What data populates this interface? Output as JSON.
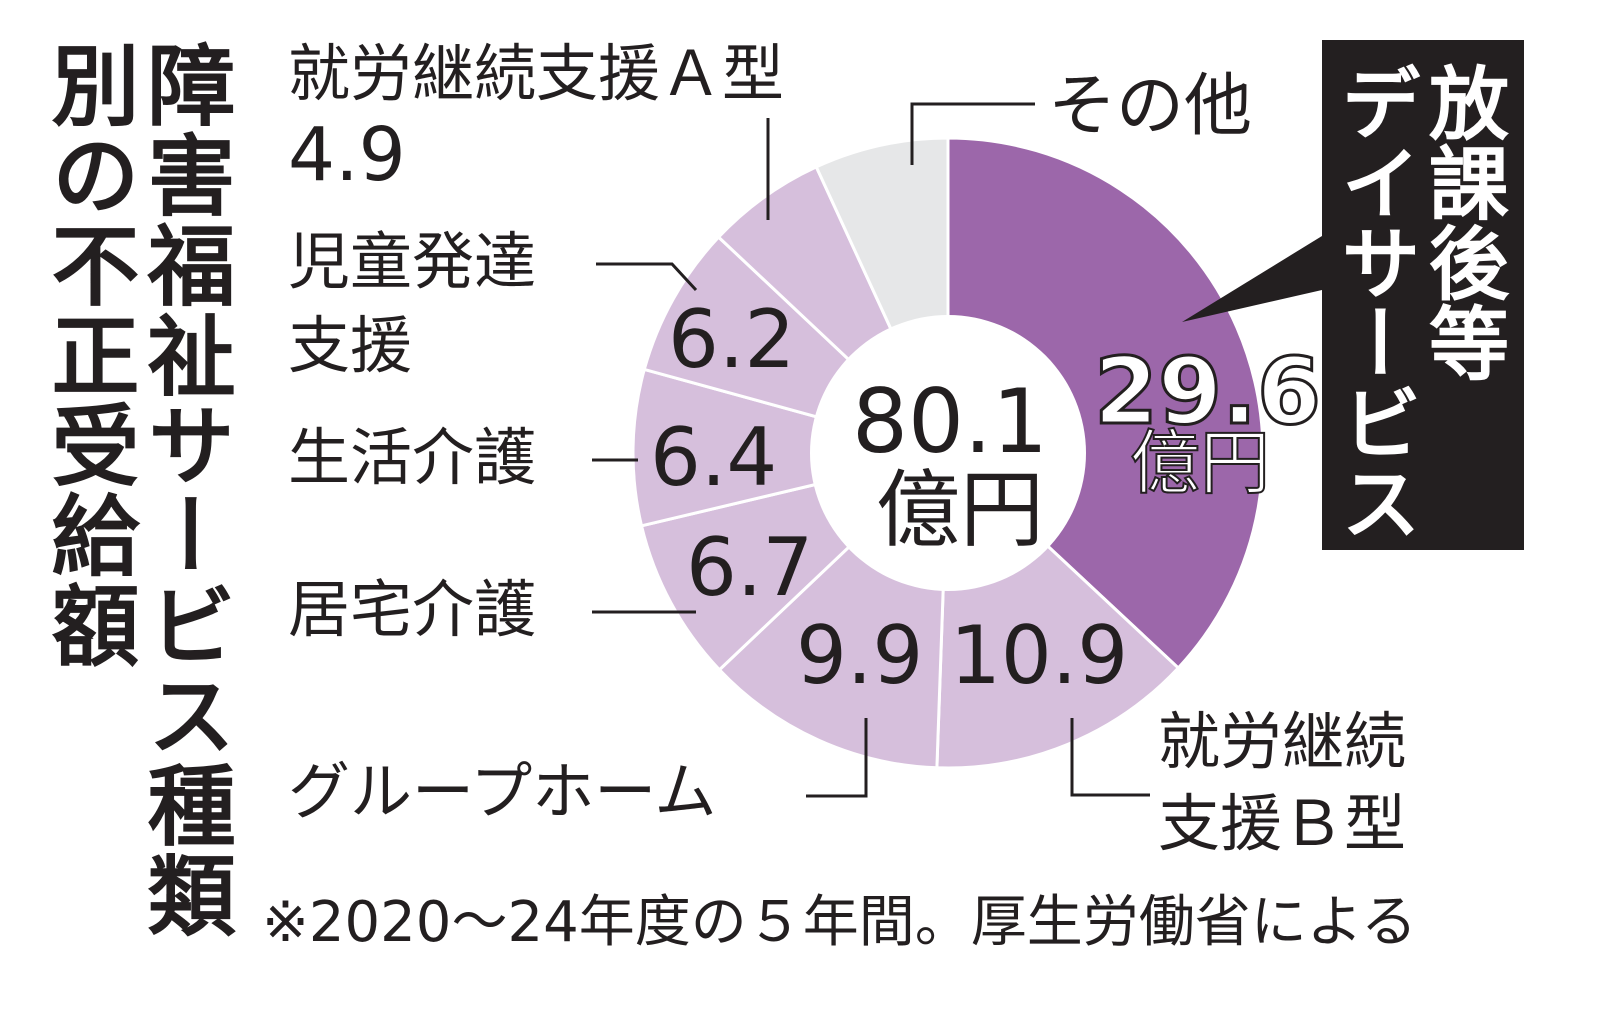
{
  "title": {
    "line1": "障害福祉サービス種類",
    "line2": "別の不正受給額"
  },
  "center": {
    "value": "80.1",
    "unit": "億円"
  },
  "callout": {
    "label_col1": "放課後等",
    "label_col2": "デイサービス",
    "value": "29.6",
    "unit": "億円"
  },
  "labels": {
    "a_type": {
      "name": "就労継続支援Ａ型",
      "value": "4.9"
    },
    "child": {
      "name_line1": "児童発達",
      "name_line2": "支援",
      "value": "6.2"
    },
    "life": {
      "name": "生活介護",
      "value": "6.4"
    },
    "home": {
      "name": "居宅介護",
      "value": "6.7"
    },
    "group": {
      "name": "グループホーム",
      "value": "9.9"
    },
    "b_type": {
      "name_line1": "就労継続",
      "name_line2": "支援Ｂ型",
      "value": "10.9"
    },
    "other": {
      "name": "その他"
    }
  },
  "footnote": "※2020～24年度の５年間。厚生労働省による",
  "colors": {
    "highlight": "#9c67aa",
    "light": "#d6bfdc",
    "other": "#e6e7e8",
    "dark": "#231f20"
  },
  "chart_data": {
    "type": "pie",
    "total": 80.1,
    "unit": "億円",
    "categories": [
      "放課後等デイサービス",
      "就労継続支援Ｂ型",
      "グループホーム",
      "居宅介護",
      "生活介護",
      "児童発達支援",
      "就労継続支援Ａ型",
      "その他"
    ],
    "values": [
      29.6,
      10.9,
      9.9,
      6.7,
      6.4,
      6.2,
      4.9,
      5.5
    ],
    "colors": [
      "#9c67aa",
      "#d6bfdc",
      "#d6bfdc",
      "#d6bfdc",
      "#d6bfdc",
      "#d6bfdc",
      "#d6bfdc",
      "#e6e7e8"
    ]
  }
}
